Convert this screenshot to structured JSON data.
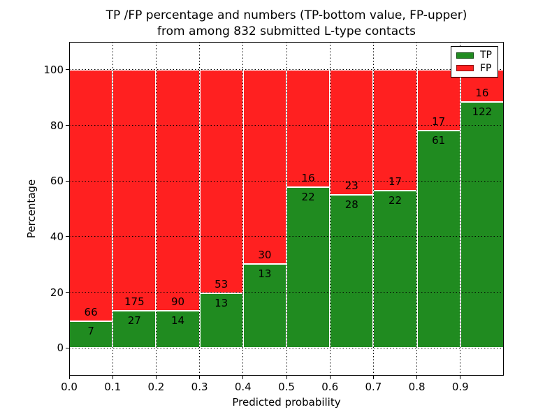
{
  "figure": {
    "title_line1": "TP /FP percentage and numbers (TP-bottom value, FP-upper)",
    "title_line2": "from among 832 submitted L-type contacts"
  },
  "chart_data": {
    "type": "bar",
    "subtype": "stacked-percentage-histogram",
    "title": "TP /FP percentage and numbers (TP-bottom value, FP-upper)\nfrom among 832 submitted L-type contacts",
    "xlabel": "Predicted probability",
    "ylabel": "Percentage",
    "total_contacts": 832,
    "xlim": [
      0.0,
      1.0
    ],
    "ylim": [
      -10,
      110
    ],
    "grid": true,
    "grid_style": "dotted",
    "bin_edges": [
      0.0,
      0.1,
      0.2,
      0.3,
      0.4,
      0.5,
      0.6,
      0.7,
      0.8,
      0.9,
      1.0
    ],
    "xtick_labels": [
      "0.0",
      "0.1",
      "0.2",
      "0.3",
      "0.4",
      "0.5",
      "0.6",
      "0.7",
      "0.8",
      "0.9"
    ],
    "ytick_values": [
      0,
      20,
      40,
      60,
      80,
      100
    ],
    "series": [
      {
        "name": "TP",
        "color": "#208b20",
        "counts": [
          7,
          27,
          14,
          13,
          13,
          22,
          28,
          22,
          61,
          122
        ],
        "percent": [
          9.6,
          13.4,
          13.5,
          19.7,
          30.2,
          57.9,
          54.9,
          56.4,
          78.2,
          88.4
        ]
      },
      {
        "name": "FP",
        "color": "#ff2020",
        "counts": [
          66,
          175,
          90,
          53,
          30,
          16,
          23,
          17,
          17,
          16
        ],
        "percent": [
          90.4,
          86.6,
          86.5,
          80.3,
          69.8,
          42.1,
          45.1,
          43.6,
          21.8,
          11.6
        ]
      }
    ],
    "legend": {
      "position": "upper-right",
      "entries": [
        "TP",
        "FP"
      ]
    }
  },
  "colors": {
    "tp_green": "#208b20",
    "fp_red": "#ff2020",
    "bar_edge": "#ffffff",
    "grid": "#000000",
    "text": "#000000"
  }
}
